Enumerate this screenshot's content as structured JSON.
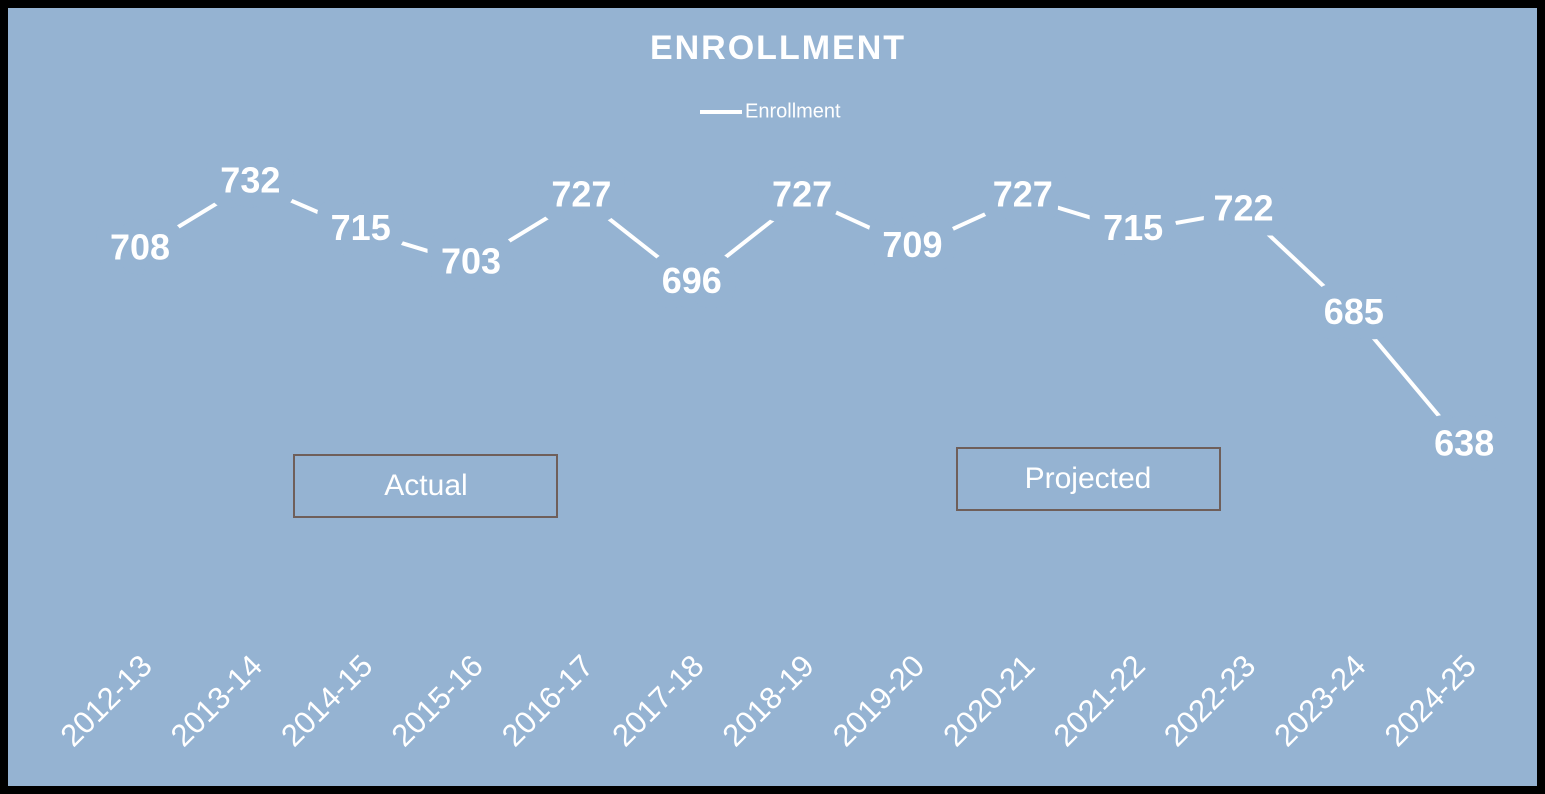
{
  "chart_data": {
    "type": "line",
    "title": "ENROLLMENT",
    "categories": [
      "2012-13",
      "2013-14",
      "2014-15",
      "2015-16",
      "2016-17",
      "2017-18",
      "2018-19",
      "2019-20",
      "2020-21",
      "2021-22",
      "2022-23",
      "2023-24",
      "2024-25"
    ],
    "series": [
      {
        "name": "Enrollment",
        "color": "#ffffff",
        "values": [
          708,
          732,
          715,
          703,
          727,
          696,
          727,
          709,
          727,
          715,
          722,
          685,
          638
        ]
      }
    ],
    "annotations": [
      "Actual",
      "Projected"
    ],
    "legend": "top",
    "drop_lines": true,
    "background": "#95b3d2"
  }
}
